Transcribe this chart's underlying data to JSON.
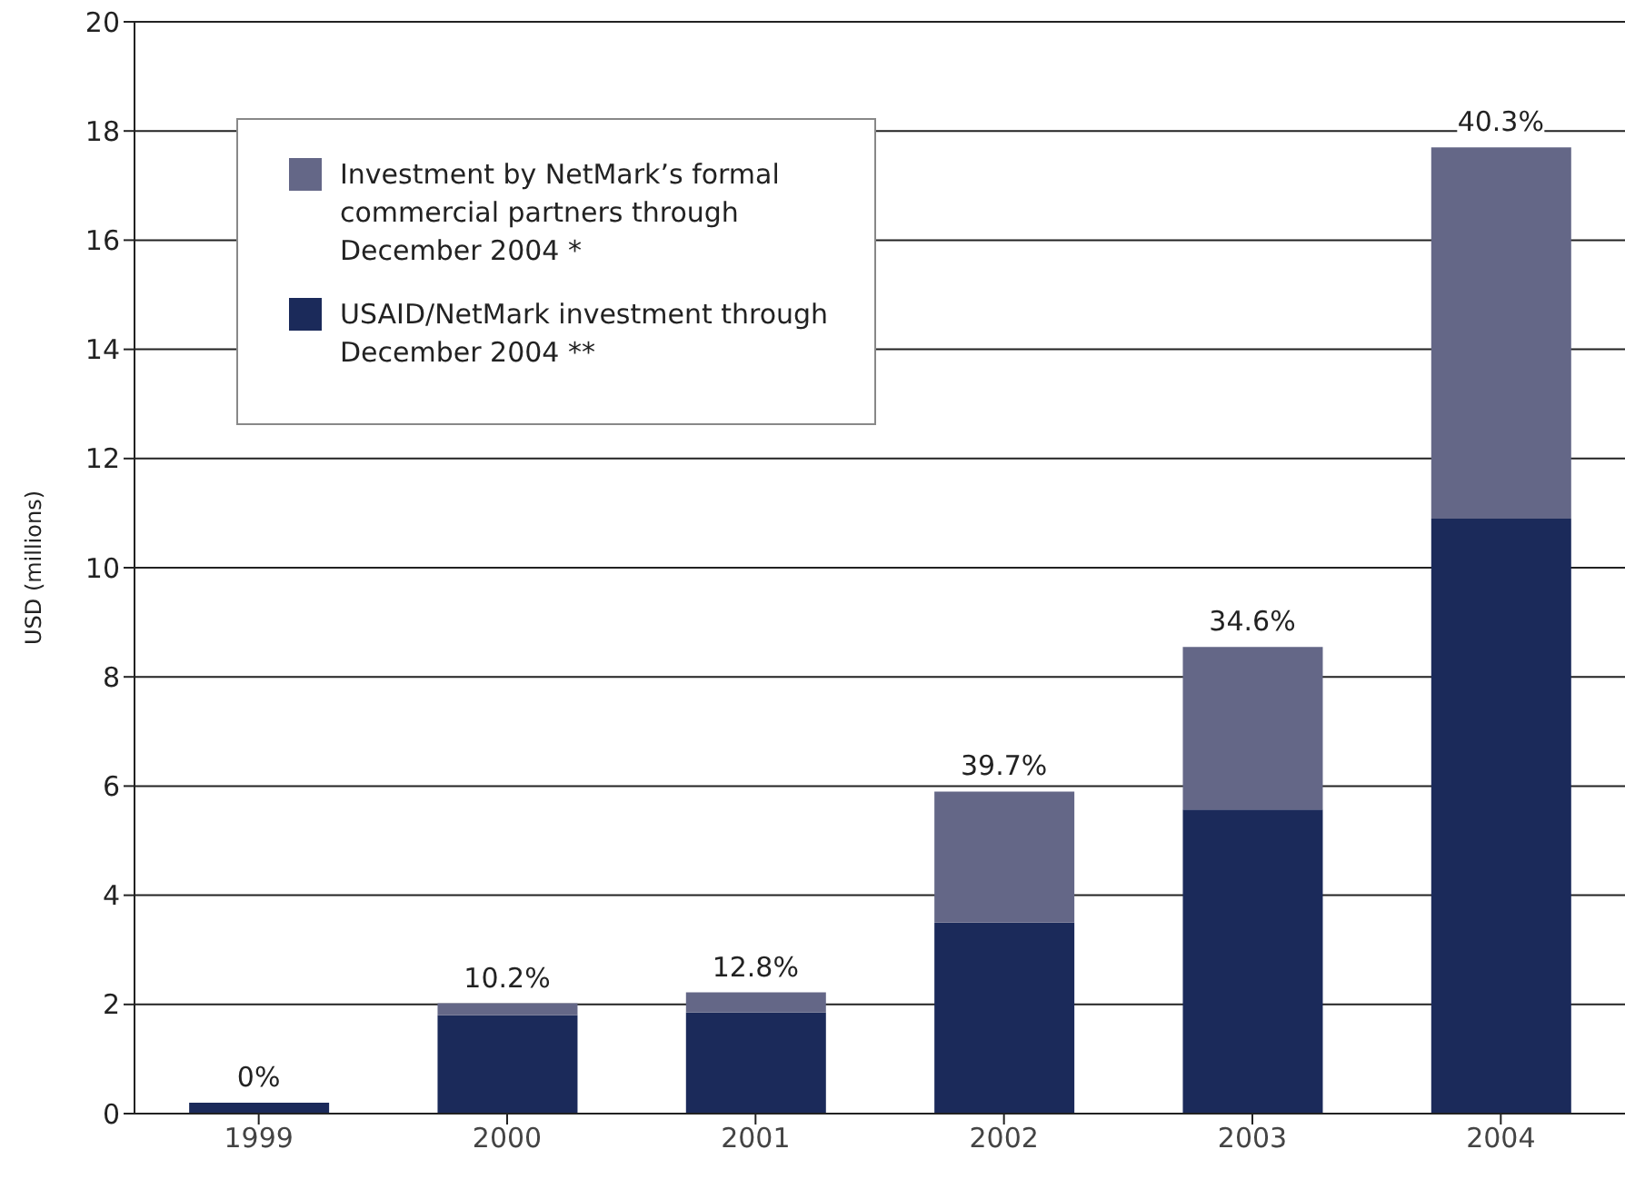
{
  "chart_data": {
    "type": "bar",
    "ylabel": "USD (millions)",
    "categories": [
      "1999",
      "2000",
      "2001",
      "2002",
      "2003",
      "2004"
    ],
    "stacked": true,
    "series": [
      {
        "name": "USAID/NetMark investment through December 2004 **",
        "color": "#1b2a5a",
        "values": [
          0.2,
          1.8,
          1.85,
          3.5,
          5.57,
          10.9
        ]
      },
      {
        "name": "Investment by NetMark’s formal commercial partners through December 2004 *",
        "color": "#646787",
        "values": [
          0,
          0.22,
          0.37,
          2.4,
          2.98,
          6.8
        ]
      }
    ],
    "annotations": [
      {
        "text": "0%",
        "x": "1999",
        "y": 0.2
      },
      {
        "text": "10.2%",
        "x": "2000",
        "y": 2.02
      },
      {
        "text": "12.8%",
        "x": "2001",
        "y": 2.22
      },
      {
        "text": "39.7%",
        "x": "2002",
        "y": 5.9
      },
      {
        "text": "34.6%",
        "x": "2003",
        "y": 8.55
      },
      {
        "text": "40.3%",
        "x": "2004",
        "y": 17.7
      }
    ],
    "ylim": [
      0,
      20
    ],
    "yticks": [
      0,
      2,
      4,
      6,
      8,
      10,
      12,
      14,
      16,
      18,
      20
    ],
    "grid": "y",
    "legend": "top left"
  }
}
